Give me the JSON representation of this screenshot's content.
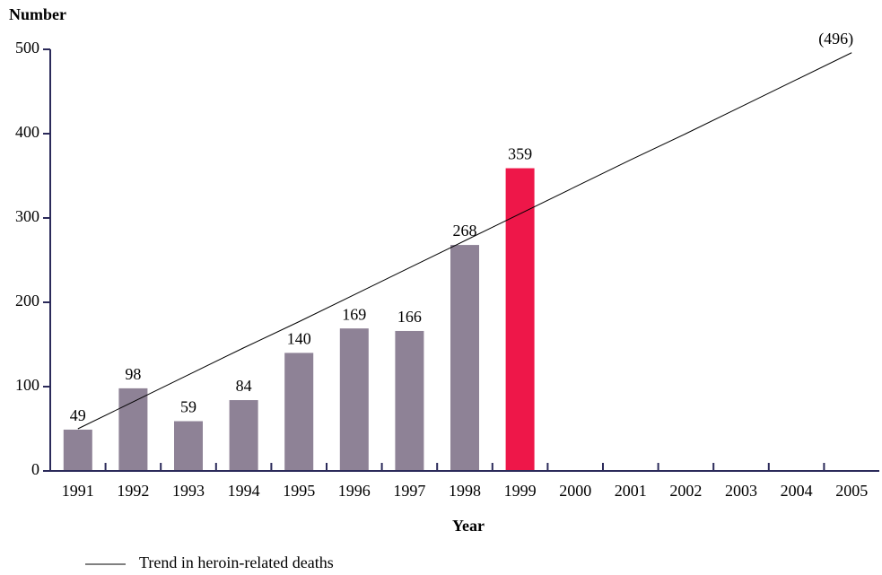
{
  "chart_data": {
    "type": "bar",
    "ylabel": "Number",
    "xlabel": "Year",
    "categories": [
      "1991",
      "1992",
      "1993",
      "1994",
      "1995",
      "1996",
      "1997",
      "1998",
      "1999",
      "2000",
      "2001",
      "2002",
      "2003",
      "2004",
      "2005"
    ],
    "values": [
      49,
      98,
      59,
      84,
      140,
      169,
      166,
      268,
      359,
      null,
      null,
      null,
      null,
      null,
      null
    ],
    "colors": [
      "#8e8296",
      "#8e8296",
      "#8e8296",
      "#8e8296",
      "#8e8296",
      "#8e8296",
      "#8e8296",
      "#8e8296",
      "#ee1749",
      null,
      null,
      null,
      null,
      null,
      null
    ],
    "trend": {
      "name": "Trend in heroin-related deaths",
      "color": "#000000",
      "values": [
        50,
        82,
        114,
        146,
        177,
        209,
        241,
        273,
        305,
        337,
        369,
        400,
        432,
        464,
        496
      ],
      "value_labels": [
        null,
        null,
        null,
        null,
        null,
        null,
        null,
        null,
        null,
        null,
        null,
        null,
        null,
        null,
        "(496)"
      ]
    },
    "ylim": [
      0,
      500
    ],
    "yticks": [
      0,
      100,
      200,
      300,
      400,
      500
    ],
    "axis_color": "#2b2a5a"
  }
}
